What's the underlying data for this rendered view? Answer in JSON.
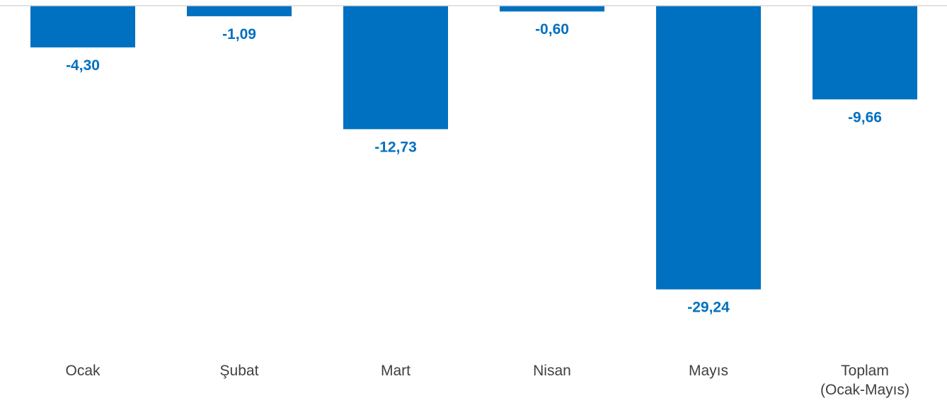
{
  "chart_data": {
    "type": "bar",
    "categories": [
      [
        "Ocak"
      ],
      [
        "Şubat"
      ],
      [
        "Mart"
      ],
      [
        "Nisan"
      ],
      [
        "Mayıs"
      ],
      [
        "Toplam",
        "(Ocak-Mayıs)"
      ]
    ],
    "values": [
      -4.3,
      -1.09,
      -12.73,
      -0.6,
      -29.24,
      -9.66
    ],
    "data_labels": [
      "-4,30",
      "-1,09",
      "-12,73",
      "-0,60",
      "-29,24",
      "-9,66"
    ],
    "ylim": [
      -29.24,
      0
    ],
    "title": "",
    "xlabel": "",
    "ylabel": "",
    "grid": false,
    "legend": "none",
    "colors": {
      "bar": "#0070C0",
      "label": "#0070C0",
      "axis": "#D9D9D9",
      "category_text": "#404040"
    }
  }
}
